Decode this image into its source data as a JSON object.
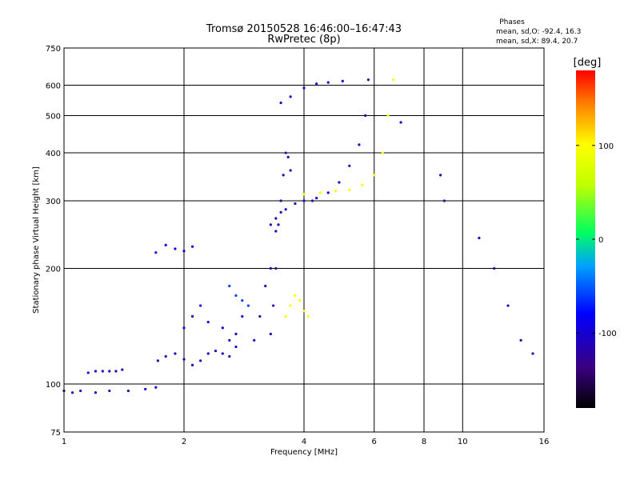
{
  "header": {
    "title": "Tromsø 20150528 16:46:00–16:47:43",
    "subtitle": "RwPretec (8p)"
  },
  "stats": {
    "heading": "Phases",
    "line_o": "mean, sd,O: -92.4, 16.3",
    "line_x": "mean, sd,X:  89.4, 20.7"
  },
  "chart_data": {
    "type": "scatter",
    "xlabel": "Frequency [MHz]",
    "ylabel": "Stationary phase Virtual Height [km]",
    "x_scale": "log",
    "y_scale": "log",
    "xlim": [
      1,
      16
    ],
    "ylim": [
      75,
      750
    ],
    "grid": true,
    "x_ticks": [
      1,
      2,
      4,
      6,
      8,
      10,
      16
    ],
    "x_tick_labels": [
      "1",
      "2",
      "4",
      "6",
      "8",
      "10",
      "16"
    ],
    "y_ticks": [
      75,
      100,
      200,
      300,
      400,
      500,
      600,
      750
    ],
    "y_tick_labels": [
      "75",
      "100",
      "200",
      "300",
      "400",
      "500",
      "600",
      "750"
    ],
    "colorbar": {
      "label": "[deg]",
      "min": -180,
      "max": 180,
      "ticks": [
        -100,
        0,
        100
      ],
      "tick_labels": [
        "-100",
        "0",
        "100"
      ]
    },
    "series": [
      {
        "x": [
          1.0,
          1.05,
          1.1,
          1.2,
          1.3,
          1.45,
          1.6,
          1.7
        ],
        "y": [
          96,
          95,
          96,
          95,
          96,
          96,
          97,
          98
        ],
        "phase": -110
      },
      {
        "x": [
          1.15,
          1.2,
          1.25,
          1.3,
          1.35,
          1.4
        ],
        "y": [
          107,
          108,
          108,
          108,
          108,
          109
        ],
        "phase": -105
      },
      {
        "x": [
          1.72,
          1.8,
          1.9,
          2.0,
          2.1,
          2.2,
          2.3,
          2.4,
          2.5,
          2.6,
          2.7
        ],
        "y": [
          115,
          118,
          120,
          116,
          112,
          115,
          120,
          122,
          120,
          118,
          125
        ],
        "phase": -110
      },
      {
        "x": [
          1.7,
          1.8,
          1.9,
          2.0,
          2.1
        ],
        "y": [
          220,
          230,
          225,
          222,
          228
        ],
        "phase": -95
      },
      {
        "x": [
          2.0,
          2.1,
          2.2,
          2.3,
          2.5,
          2.6,
          2.7,
          2.8
        ],
        "y": [
          140,
          150,
          160,
          145,
          140,
          130,
          135,
          150
        ],
        "phase": -105
      },
      {
        "x": [
          2.6,
          2.7,
          2.8,
          2.9
        ],
        "y": [
          180,
          170,
          165,
          160
        ],
        "phase": -60
      },
      {
        "x": [
          3.0,
          3.1,
          3.2,
          3.3,
          3.4
        ],
        "y": [
          130,
          150,
          180,
          200,
          250
        ],
        "phase": -115
      },
      {
        "x": [
          3.3,
          3.35,
          3.4,
          3.45,
          3.5,
          3.55,
          3.6,
          3.65,
          3.7
        ],
        "y": [
          135,
          160,
          200,
          260,
          300,
          350,
          400,
          390,
          360
        ],
        "phase": -120
      },
      {
        "x": [
          3.3,
          3.4,
          3.5,
          3.6,
          3.8,
          4.0,
          4.2
        ],
        "y": [
          260,
          270,
          280,
          285,
          295,
          300,
          300
        ],
        "phase": -115
      },
      {
        "x": [
          3.6,
          3.7,
          3.8,
          3.9,
          4.0,
          4.1
        ],
        "y": [
          150,
          160,
          170,
          165,
          155,
          150
        ],
        "phase": 100
      },
      {
        "x": [
          4.0,
          4.3,
          4.6,
          4.9,
          5.2,
          5.5,
          5.7,
          5.8
        ],
        "y": [
          300,
          305,
          315,
          335,
          370,
          420,
          500,
          620
        ],
        "phase": -110
      },
      {
        "x": [
          4.0,
          4.4,
          4.8,
          5.2,
          5.6,
          6.0,
          6.3,
          6.5,
          6.7
        ],
        "y": [
          312,
          315,
          318,
          320,
          330,
          350,
          400,
          500,
          620
        ],
        "phase": 100
      },
      {
        "x": [
          3.5,
          3.7,
          4.0,
          4.3,
          4.6,
          5.0
        ],
        "y": [
          540,
          560,
          590,
          605,
          610,
          615
        ],
        "phase": -105
      },
      {
        "x": [
          7.0,
          8.8,
          9.0,
          11.0,
          12.0,
          13.0,
          14.0,
          15.0
        ],
        "y": [
          480,
          350,
          300,
          240,
          200,
          160,
          130,
          120
        ],
        "phase": -120
      }
    ]
  }
}
